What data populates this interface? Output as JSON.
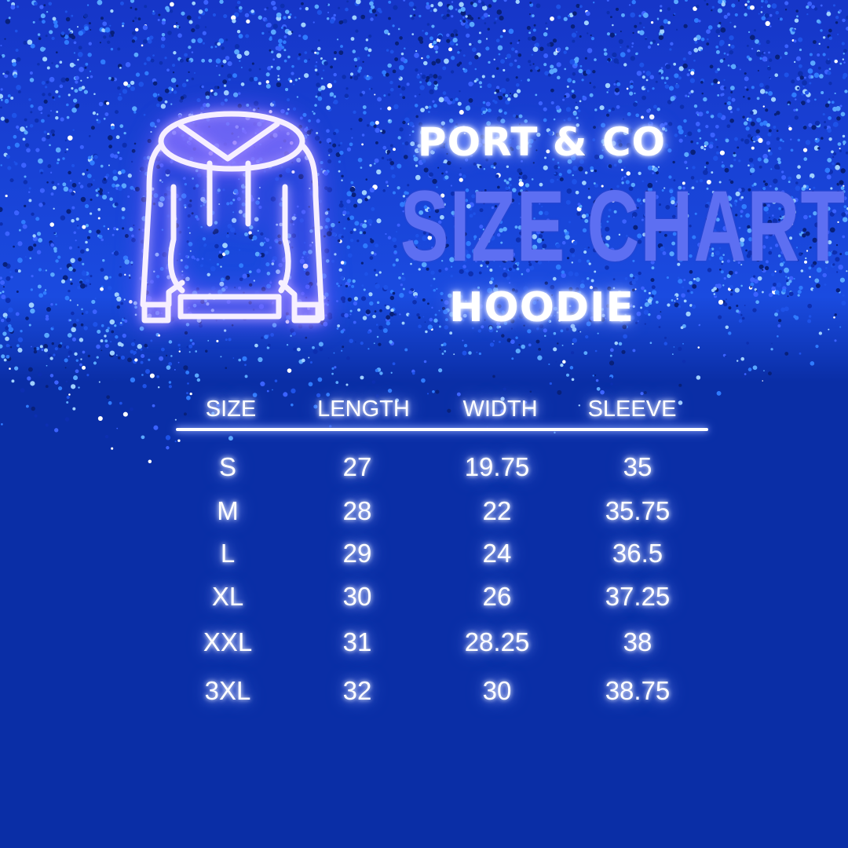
{
  "header": {
    "brand": "PORT & CO",
    "title": "SIZE CHART",
    "subtitle": "HOODIE",
    "icon": "hoodie-icon"
  },
  "colors": {
    "background": "#0a2ea6",
    "title": "#5d6ff2",
    "glitter": "#1b5cff",
    "icon_glow": "#7a5cff"
  },
  "chart_data": {
    "type": "table",
    "columns": [
      "SIZE",
      "LENGTH",
      "WIDTH",
      "SLEEVE"
    ],
    "rows": [
      [
        "S",
        "27",
        "19.75",
        "35"
      ],
      [
        "M",
        "28",
        "22",
        "35.75"
      ],
      [
        "L",
        "29",
        "24",
        "36.5"
      ],
      [
        "XL",
        "30",
        "26",
        "37.25"
      ],
      [
        "XXL",
        "31",
        "28.25",
        "38"
      ],
      [
        "3XL",
        "32",
        "30",
        "38.75"
      ]
    ]
  }
}
